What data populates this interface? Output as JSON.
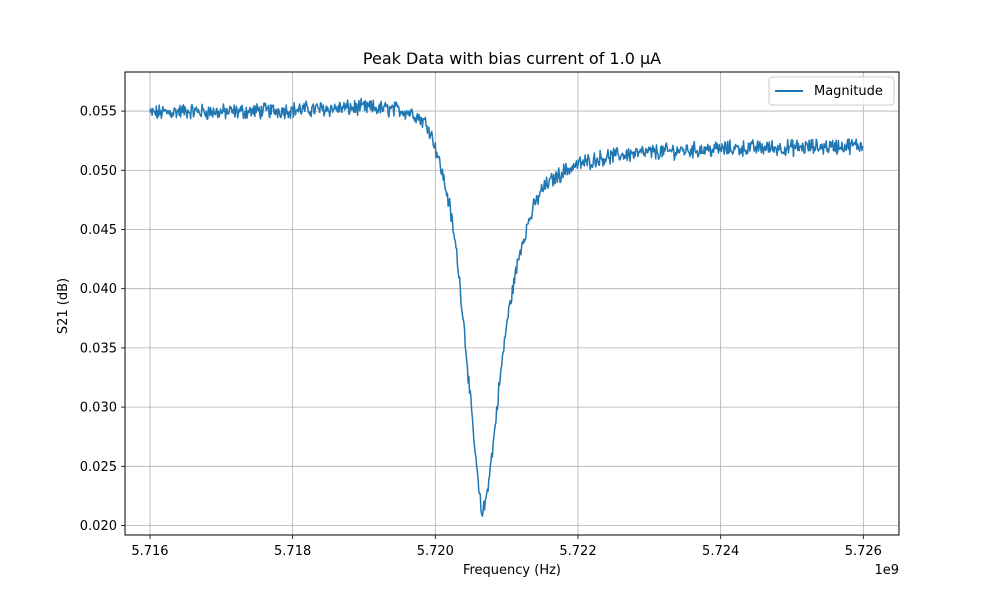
{
  "chart_data": {
    "type": "line",
    "title": "Peak Data with bias current of 1.0 μA",
    "xlabel": "Frequency (Hz)",
    "ylabel": "S21 (dB)",
    "x_offset_label": "1e9",
    "x_scale": 1000000000,
    "xlim": [
      5715650000,
      5726500000
    ],
    "ylim": [
      0.0192,
      0.0583
    ],
    "xticks": [
      5716000000,
      5718000000,
      5720000000,
      5722000000,
      5724000000,
      5726000000
    ],
    "xtick_labels": [
      "5.716",
      "5.718",
      "5.720",
      "5.722",
      "5.724",
      "5.726"
    ],
    "yticks": [
      0.02,
      0.025,
      0.03,
      0.035,
      0.04,
      0.045,
      0.05,
      0.055
    ],
    "ytick_labels": [
      "0.020",
      "0.025",
      "0.030",
      "0.035",
      "0.040",
      "0.045",
      "0.050",
      "0.055"
    ],
    "grid": true,
    "legend": {
      "position": "top-right",
      "entries": [
        "Magnitude"
      ]
    },
    "series": [
      {
        "name": "Magnitude",
        "color": "#1f77b4",
        "x": [
          5716000000,
          5716500000,
          5717000000,
          5717500000,
          5718000000,
          5718500000,
          5719000000,
          5719500000,
          5719700000,
          5719900000,
          5720000000,
          5720100000,
          5720200000,
          5720300000,
          5720400000,
          5720500000,
          5720600000,
          5720650000,
          5720700000,
          5720800000,
          5720900000,
          5721000000,
          5721100000,
          5721200000,
          5721300000,
          5721400000,
          5721500000,
          5721600000,
          5721800000,
          5722000000,
          5722300000,
          5722600000,
          5723000000,
          5723500000,
          5724000000,
          5724500000,
          5725000000,
          5725500000,
          5726000000
        ],
        "y": [
          0.0548,
          0.055,
          0.0549,
          0.055,
          0.0551,
          0.0552,
          0.0553,
          0.0551,
          0.0548,
          0.0538,
          0.052,
          0.0497,
          0.047,
          0.043,
          0.037,
          0.03,
          0.0235,
          0.021,
          0.0218,
          0.0262,
          0.032,
          0.037,
          0.0405,
          0.0435,
          0.0455,
          0.0472,
          0.0484,
          0.049,
          0.0499,
          0.0505,
          0.051,
          0.0513,
          0.0515,
          0.0517,
          0.0518,
          0.0519,
          0.0519,
          0.052,
          0.0521
        ]
      }
    ]
  }
}
